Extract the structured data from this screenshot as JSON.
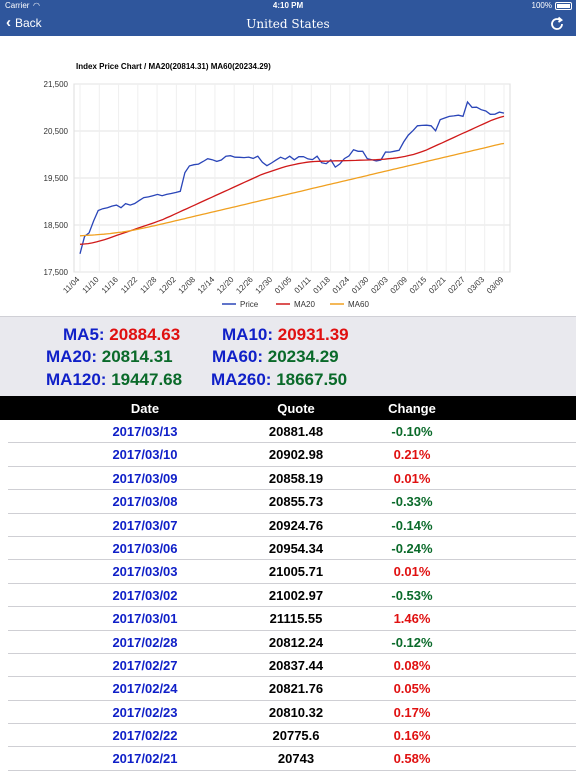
{
  "status_bar": {
    "carrier": "Carrier",
    "time": "4:10 PM",
    "battery": "100%"
  },
  "nav": {
    "back_label": "Back",
    "title": "United States"
  },
  "chart_data": {
    "type": "line",
    "title": "Index Price Chart / MA20(20814.31) MA60(20234.29)",
    "x_ticks": [
      "11/04",
      "11/10",
      "11/16",
      "11/22",
      "11/28",
      "12/02",
      "12/08",
      "12/14",
      "12/20",
      "12/26",
      "12/30",
      "01/05",
      "01/11",
      "01/18",
      "01/24",
      "01/30",
      "02/03",
      "02/09",
      "02/15",
      "02/21",
      "02/27",
      "03/03",
      "03/09"
    ],
    "y_ticks": [
      17500,
      18500,
      19500,
      20500,
      21500
    ],
    "y_tick_labels": [
      "17,500",
      "18,500",
      "19,500",
      "20,500",
      "21,500"
    ],
    "ylim": [
      17500,
      21500
    ],
    "grid": true,
    "legend_position": "bottom",
    "series": [
      {
        "name": "Price",
        "color": "#2a45b8",
        "values": [
          17888,
          18259,
          18332,
          18589,
          18808,
          18847,
          18868,
          18903,
          18924,
          18868,
          18956,
          18923,
          18957,
          19023,
          19083,
          19097,
          19124,
          19152,
          19123,
          19152,
          19170,
          19191,
          19216,
          19614,
          19757,
          19782,
          19796,
          19850,
          19911,
          19889,
          19853,
          19883,
          19963,
          19974,
          19942,
          19941,
          19933,
          19945,
          19918,
          19963,
          19833,
          19762,
          19819,
          19881,
          19942,
          19899,
          19964,
          19887,
          19954,
          19955,
          19907,
          19891,
          19963,
          19826,
          19804,
          19885,
          19732,
          19799,
          19913,
          19971,
          20100,
          20069,
          20068,
          19912,
          19890,
          19864,
          19884,
          20054,
          20052,
          20071,
          20090,
          20269,
          20412,
          20504,
          20611,
          20619,
          20624,
          20611,
          20504,
          20743,
          20776,
          20810,
          20822,
          20837,
          20812,
          21116,
          21003,
          21006,
          20954,
          20925,
          20856,
          20858,
          20903,
          20881
        ]
      },
      {
        "name": "MA20",
        "color": "#d01a1a",
        "values": [
          18090,
          18095,
          18105,
          18120,
          18140,
          18165,
          18190,
          18220,
          18250,
          18280,
          18310,
          18340,
          18370,
          18400,
          18430,
          18460,
          18490,
          18520,
          18550,
          18580,
          18610,
          18650,
          18690,
          18730,
          18770,
          18810,
          18850,
          18890,
          18930,
          18970,
          19010,
          19050,
          19090,
          19130,
          19170,
          19210,
          19250,
          19290,
          19330,
          19370,
          19410,
          19450,
          19490,
          19530,
          19570,
          19600,
          19630,
          19660,
          19690,
          19720,
          19745,
          19765,
          19785,
          19805,
          19820,
          19835,
          19845,
          19850,
          19855,
          19858,
          19860,
          19862,
          19865,
          19867,
          19868,
          19870,
          19872,
          19875,
          19878,
          19880,
          19883,
          19886,
          19890,
          19895,
          19900,
          19910,
          19920,
          19930,
          19945,
          19960,
          19980,
          20000,
          20030,
          20060,
          20090,
          20130,
          20170,
          20210,
          20250,
          20290,
          20330,
          20370,
          20410,
          20450,
          20490,
          20530,
          20570,
          20610,
          20650,
          20690,
          20730,
          20760,
          20790,
          20814
        ]
      },
      {
        "name": "MA60",
        "color": "#f0a020",
        "values": [
          18270,
          18274,
          18278,
          18282,
          18286,
          18290,
          18295,
          18300,
          18305,
          18310,
          18318,
          18326,
          18334,
          18342,
          18350,
          18360,
          18370,
          18380,
          18392,
          18404,
          18416,
          18430,
          18444,
          18458,
          18472,
          18486,
          18500,
          18515,
          18530,
          18545,
          18560,
          18575,
          18590,
          18605,
          18620,
          18635,
          18650,
          18665,
          18680,
          18695,
          18710,
          18725,
          18740,
          18755,
          18770,
          18785,
          18800,
          18815,
          18830,
          18845,
          18860,
          18875,
          18890,
          18905,
          18920,
          18935,
          18950,
          18965,
          18980,
          18995,
          19010,
          19025,
          19040,
          19055,
          19070,
          19085,
          19100,
          19115,
          19130,
          19145,
          19160,
          19175,
          19190,
          19205,
          19220,
          19235,
          19250,
          19265,
          19280,
          19295,
          19310,
          19325,
          19340,
          19355,
          19370,
          19385,
          19400,
          19415,
          19430,
          19445,
          19460,
          19475,
          19490,
          19505,
          19520,
          19535,
          19550,
          19565,
          19580,
          19595,
          19610,
          19625,
          19640,
          19655,
          19670,
          19685,
          19700,
          19715,
          19730,
          19745,
          19760,
          19775,
          19790,
          19805,
          19820,
          19835,
          19850,
          19865,
          19880,
          19895,
          19910,
          19925,
          19940,
          19955,
          19970,
          19985,
          20000,
          20015,
          20030,
          20045,
          20060,
          20075,
          20090,
          20105,
          20120,
          20135,
          20150,
          20165,
          20180,
          20195,
          20210,
          20225,
          20234
        ]
      }
    ]
  },
  "moving_averages": [
    {
      "label": "MA5:",
      "value": "20884.63",
      "color": "red"
    },
    {
      "label": "MA10:",
      "value": "20931.39",
      "color": "red"
    },
    {
      "label": "MA20:",
      "value": "20814.31",
      "color": "green"
    },
    {
      "label": "MA60:",
      "value": "20234.29",
      "color": "green"
    },
    {
      "label": "MA120:",
      "value": "19447.68",
      "color": "green"
    },
    {
      "label": "MA260:",
      "value": "18667.50",
      "color": "green"
    }
  ],
  "table": {
    "headers": {
      "date": "Date",
      "quote": "Quote",
      "change": "Change"
    },
    "rows": [
      {
        "date": "2017/03/13",
        "quote": "20881.48",
        "change": "-0.10%",
        "dir": "down"
      },
      {
        "date": "2017/03/10",
        "quote": "20902.98",
        "change": "0.21%",
        "dir": "up"
      },
      {
        "date": "2017/03/09",
        "quote": "20858.19",
        "change": "0.01%",
        "dir": "up"
      },
      {
        "date": "2017/03/08",
        "quote": "20855.73",
        "change": "-0.33%",
        "dir": "down"
      },
      {
        "date": "2017/03/07",
        "quote": "20924.76",
        "change": "-0.14%",
        "dir": "down"
      },
      {
        "date": "2017/03/06",
        "quote": "20954.34",
        "change": "-0.24%",
        "dir": "down"
      },
      {
        "date": "2017/03/03",
        "quote": "21005.71",
        "change": "0.01%",
        "dir": "up"
      },
      {
        "date": "2017/03/02",
        "quote": "21002.97",
        "change": "-0.53%",
        "dir": "down"
      },
      {
        "date": "2017/03/01",
        "quote": "21115.55",
        "change": "1.46%",
        "dir": "up"
      },
      {
        "date": "2017/02/28",
        "quote": "20812.24",
        "change": "-0.12%",
        "dir": "down"
      },
      {
        "date": "2017/02/27",
        "quote": "20837.44",
        "change": "0.08%",
        "dir": "up"
      },
      {
        "date": "2017/02/24",
        "quote": "20821.76",
        "change": "0.05%",
        "dir": "up"
      },
      {
        "date": "2017/02/23",
        "quote": "20810.32",
        "change": "0.17%",
        "dir": "up"
      },
      {
        "date": "2017/02/22",
        "quote": "20775.6",
        "change": "0.16%",
        "dir": "up"
      },
      {
        "date": "2017/02/21",
        "quote": "20743",
        "change": "0.58%",
        "dir": "up"
      }
    ]
  }
}
